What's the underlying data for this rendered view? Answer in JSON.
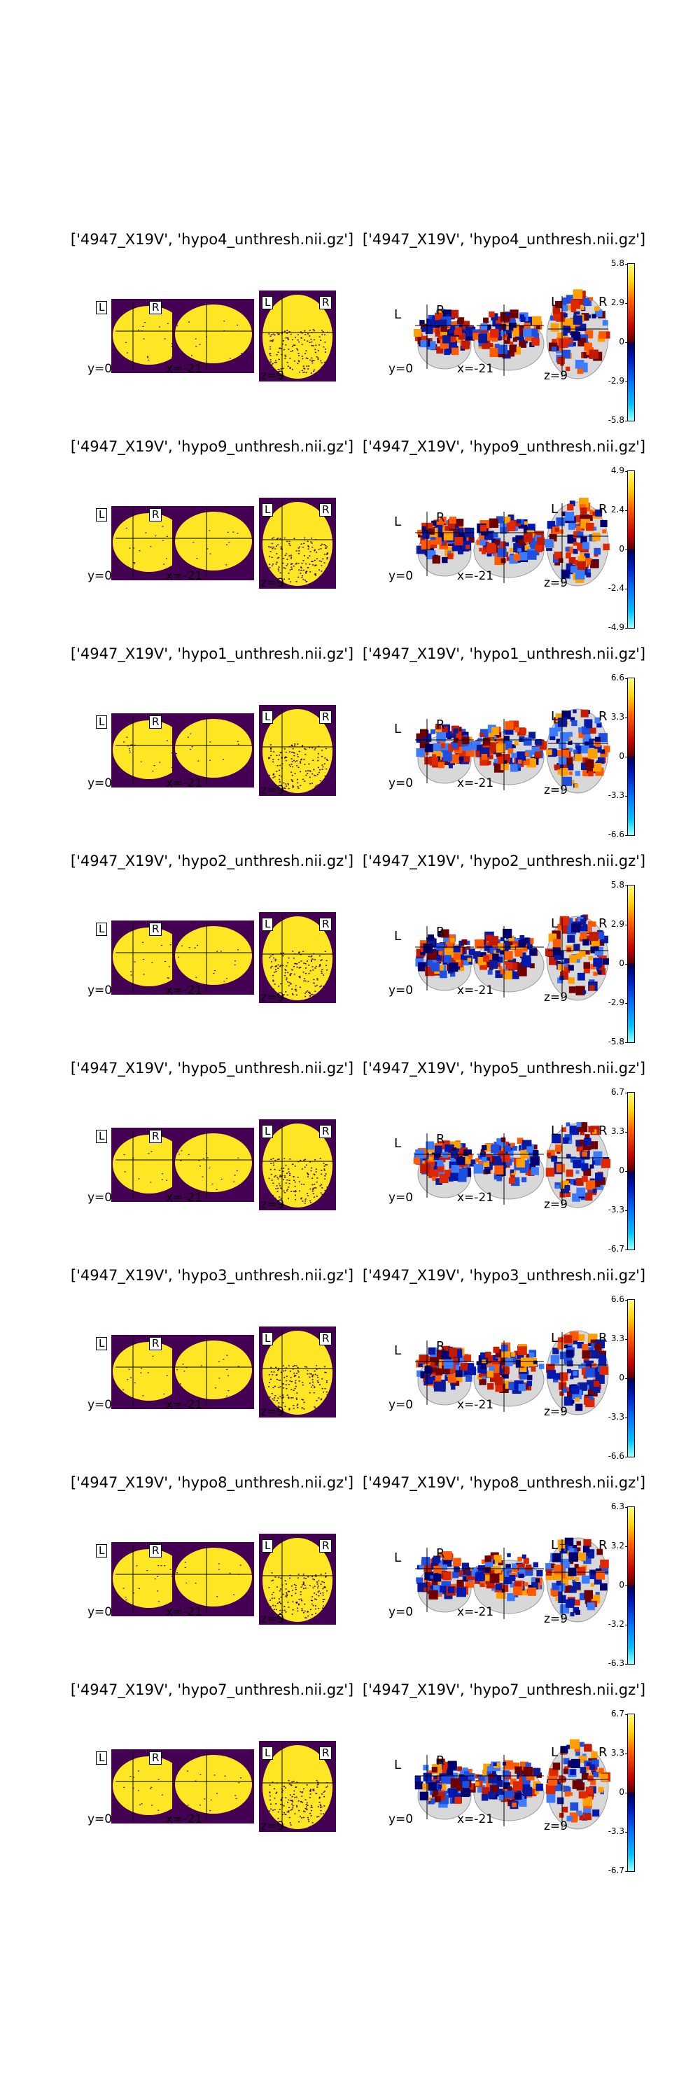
{
  "figures": [
    {
      "left_title": "['4947_X19V', 'hypo4_unthresh.nii.gz']",
      "right_title": "['4947_X19V', 'hypo4_unthresh.nii.gz']",
      "cbar_ticks": [
        "5.8",
        "2.9",
        "0",
        "-2.9",
        "-5.8"
      ]
    },
    {
      "left_title": "['4947_X19V', 'hypo9_unthresh.nii.gz']",
      "right_title": "['4947_X19V', 'hypo9_unthresh.nii.gz']",
      "cbar_ticks": [
        "4.9",
        "2.4",
        "0",
        "-2.4",
        "-4.9"
      ]
    },
    {
      "left_title": "['4947_X19V', 'hypo1_unthresh.nii.gz']",
      "right_title": "['4947_X19V', 'hypo1_unthresh.nii.gz']",
      "cbar_ticks": [
        "6.6",
        "3.3",
        "0",
        "-3.3",
        "-6.6"
      ]
    },
    {
      "left_title": "['4947_X19V', 'hypo2_unthresh.nii.gz']",
      "right_title": "['4947_X19V', 'hypo2_unthresh.nii.gz']",
      "cbar_ticks": [
        "5.8",
        "2.9",
        "0",
        "-2.9",
        "-5.8"
      ]
    },
    {
      "left_title": "['4947_X19V', 'hypo5_unthresh.nii.gz']",
      "right_title": "['4947_X19V', 'hypo5_unthresh.nii.gz']",
      "cbar_ticks": [
        "6.7",
        "3.3",
        "0",
        "-3.3",
        "-6.7"
      ]
    },
    {
      "left_title": "['4947_X19V', 'hypo3_unthresh.nii.gz']",
      "right_title": "['4947_X19V', 'hypo3_unthresh.nii.gz']",
      "cbar_ticks": [
        "6.6",
        "3.3",
        "0",
        "-3.3",
        "-6.6"
      ]
    },
    {
      "left_title": "['4947_X19V', 'hypo8_unthresh.nii.gz']",
      "right_title": "['4947_X19V', 'hypo8_unthresh.nii.gz']",
      "cbar_ticks": [
        "6.3",
        "3.2",
        "0",
        "-3.2",
        "-6.3"
      ]
    },
    {
      "left_title": "['4947_X19V', 'hypo7_unthresh.nii.gz']",
      "right_title": "['4947_X19V', 'hypo7_unthresh.nii.gz']",
      "cbar_ticks": [
        "6.7",
        "3.3",
        "0",
        "-3.3",
        "-6.7"
      ]
    }
  ],
  "slice_labels": {
    "coronal": "y=0",
    "sagittal": "x=-21",
    "axial": "z=9"
  },
  "orientation": {
    "left": "L",
    "right": "R"
  },
  "colors": {
    "mask_background": "#440154",
    "mask_foreground": "#fde725",
    "brain_outline": "#9a9a9a"
  }
}
